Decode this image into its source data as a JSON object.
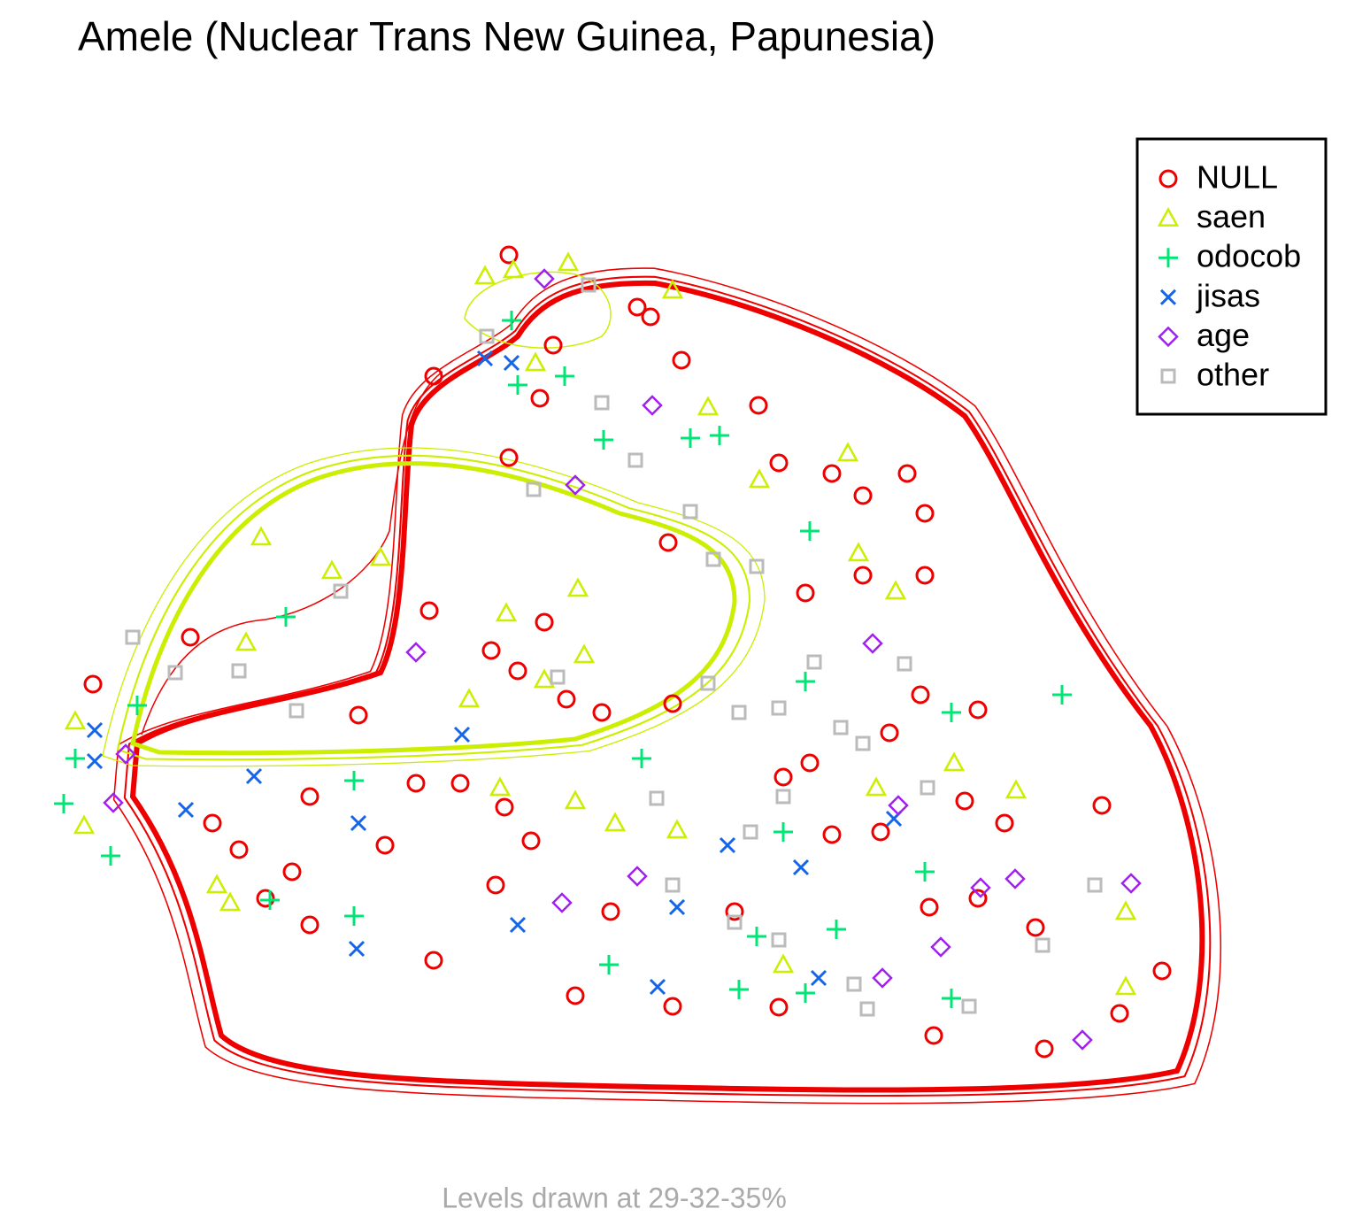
{
  "chart_data": {
    "type": "scatter",
    "title": "Amele (Nuclear Trans New Guinea, Papunesia)",
    "subtitle": "Levels drawn at 29-32-35%",
    "xlim": [
      0,
      1320
    ],
    "ylim": [
      0,
      920
    ],
    "legend": "top-right",
    "series": [
      {
        "name": "NULL",
        "color": "#ee0000",
        "marker": "circle",
        "x": [
          515,
          430,
          660,
          675,
          565,
          710,
          550,
          797,
          515,
          820,
          880,
          965,
          915,
          985,
          695,
          985,
          915,
          850,
          425,
          555,
          495,
          525,
          580,
          620,
          700,
          980,
          1045,
          945,
          855,
          825,
          1030,
          1185,
          880,
          935,
          1075,
          990,
          1110,
          1253,
          1205,
          1120,
          995,
          820,
          700,
          590,
          430,
          290,
          240,
          410,
          460,
          510,
          155,
          45,
          345,
          375,
          630,
          770,
          1045,
          180,
          210,
          270,
          290,
          540,
          500
        ],
        "y": [
          912,
          775,
          853,
          842,
          810,
          793,
          750,
          742,
          683,
          677,
          665,
          665,
          640,
          620,
          587,
          550,
          550,
          530,
          510,
          497,
          465,
          442,
          410,
          395,
          405,
          415,
          398,
          372,
          338,
          322,
          295,
          290,
          257,
          260,
          270,
          175,
          152,
          103,
          55,
          15,
          30,
          62,
          63,
          75,
          115,
          155,
          185,
          315,
          315,
          288,
          480,
          427,
          392,
          245,
          170,
          170,
          185,
          270,
          240,
          215,
          300,
          250,
          200
        ]
      },
      {
        "name": "saen",
        "color": "#ccee00",
        "marker": "triangle",
        "x": [
          582,
          520,
          488,
          700,
          545,
          740,
          898,
          798,
          235,
          910,
          952,
          593,
          512,
          315,
          370,
          218,
          600,
          470,
          555,
          25,
          35,
          1088,
          1212,
          1212,
          1018,
          930,
          635,
          705,
          590,
          505,
          825,
          185,
          200
        ],
        "y": [
          903,
          895,
          888,
          872,
          790,
          740,
          688,
          658,
          593,
          575,
          532,
          535,
          507,
          555,
          570,
          474,
          460,
          410,
          432,
          385,
          267,
          307,
          170,
          85,
          338,
          310,
          270,
          262,
          295,
          310,
          110,
          200,
          180
        ]
      },
      {
        "name": "odocob",
        "color": "#00e676",
        "marker": "plus",
        "x": [
          518,
          525,
          578,
          622,
          720,
          753,
          855,
          263,
          95,
          25,
          12,
          65,
          340,
          1140,
          1015,
          850,
          665,
          825,
          795,
          628,
          775,
          850,
          1015,
          885,
          985,
          340,
          245
        ],
        "y": [
          838,
          765,
          775,
          703,
          705,
          708,
          600,
          503,
          403,
          343,
          292,
          233,
          318,
          415,
          395,
          430,
          343,
          260,
          142,
          110,
          82,
          78,
          72,
          150,
          215,
          165,
          183
        ]
      },
      {
        "name": "jisas",
        "color": "#1465e8",
        "marker": "cross",
        "x": [
          488,
          518,
          462,
          47,
          47,
          227,
          345,
          762,
          845,
          705,
          525,
          343,
          683,
          865,
          950,
          150
        ],
        "y": [
          795,
          790,
          370,
          375,
          340,
          323,
          270,
          245,
          220,
          175,
          155,
          128,
          85,
          95,
          275,
          285
        ]
      },
      {
        "name": "age",
        "color": "#a020f0",
        "marker": "diamond",
        "x": [
          555,
          677,
          590,
          410,
          926,
          82,
          68,
          660,
          955,
          1087,
          1218,
          1048,
          1003,
          937,
          1163,
          575
        ],
        "y": [
          885,
          742,
          652,
          463,
          473,
          348,
          293,
          210,
          290,
          207,
          202,
          197,
          130,
          95,
          25,
          180
        ]
      },
      {
        "name": "other",
        "color": "#bbbbbb",
        "marker": "square",
        "x": [
          605,
          490,
          620,
          658,
          543,
          720,
          746,
          795,
          325,
          90,
          138,
          210,
          275,
          570,
          740,
          775,
          820,
          860,
          890,
          962,
          915,
          988,
          825,
          682,
          788,
          700,
          770,
          820,
          905,
          920,
          1118,
          1177,
          1035
        ],
        "y": [
          878,
          820,
          745,
          680,
          647,
          622,
          568,
          560,
          532,
          480,
          440,
          442,
          397,
          435,
          428,
          395,
          400,
          452,
          378,
          450,
          360,
          310,
          300,
          298,
          260,
          200,
          158,
          138,
          88,
          60,
          132,
          200,
          63
        ]
      }
    ]
  }
}
